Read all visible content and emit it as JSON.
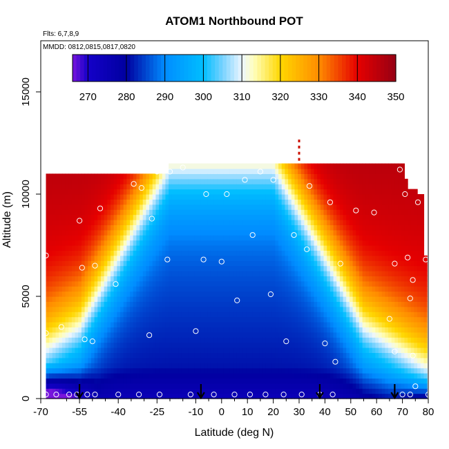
{
  "chart_data": {
    "type": "heatmap",
    "title": "ATOM1 Northbound POT",
    "subtitle_flights": "Flts: 6,7,8,9",
    "subtitle_dates": "MMDD: 0812,0815,0817,0820",
    "xlabel": "Latitude (deg N)",
    "ylabel": "Altitude (m)",
    "xlim": [
      -70,
      80
    ],
    "ylim": [
      0,
      17500
    ],
    "x_ticks": [
      "-70",
      "-55",
      "-40",
      "-25",
      "-10",
      "0",
      "10",
      "20",
      "30",
      "40",
      "50",
      "60",
      "70",
      "80"
    ],
    "x_tick_values": [
      -70,
      -55,
      -40,
      -25,
      -10,
      0,
      10,
      20,
      30,
      40,
      50,
      60,
      70,
      80
    ],
    "x_ticks_minor": [
      "-60",
      "-50",
      "-45",
      "-35",
      "-30",
      "-20",
      "-15",
      "-5",
      "5",
      "15",
      "25",
      "35",
      "45",
      "55",
      "65",
      "75"
    ],
    "x_minor_values": [
      -60,
      -50,
      -45,
      -35,
      -30,
      -20,
      -15,
      -5,
      5,
      15,
      25,
      35,
      45,
      55,
      65,
      75
    ],
    "y_ticks": [
      "0",
      "5000",
      "10000",
      "15000"
    ],
    "y_tick_values": [
      0,
      5000,
      10000,
      15000
    ],
    "colorbar": {
      "min": 266,
      "max": 350,
      "ticks": [
        "270",
        "280",
        "290",
        "300",
        "310",
        "320",
        "330",
        "340",
        "350"
      ],
      "tick_values": [
        270,
        280,
        290,
        300,
        310,
        320,
        330,
        340,
        350
      ]
    },
    "grid": false,
    "sample_points": [
      [
        -68,
        7000
      ],
      [
        -68,
        3200
      ],
      [
        -68,
        200
      ],
      [
        -64,
        200
      ],
      [
        -62,
        3500
      ],
      [
        -59,
        200
      ],
      [
        -56,
        200
      ],
      [
        -55,
        8700
      ],
      [
        -54,
        6400
      ],
      [
        -53,
        2900
      ],
      [
        -52,
        200
      ],
      [
        -50,
        2800
      ],
      [
        -49,
        200
      ],
      [
        -49,
        6500
      ],
      [
        -47,
        9300
      ],
      [
        -41,
        5600
      ],
      [
        -40,
        200
      ],
      [
        -34,
        10500
      ],
      [
        -32,
        200
      ],
      [
        -31,
        10300
      ],
      [
        -28,
        3100
      ],
      [
        -27,
        8800
      ],
      [
        -25,
        11100
      ],
      [
        -24,
        200
      ],
      [
        -21,
        6800
      ],
      [
        -20,
        11100
      ],
      [
        -15,
        11300
      ],
      [
        -12,
        200
      ],
      [
        -10,
        3300
      ],
      [
        -7,
        6800
      ],
      [
        -6,
        10000
      ],
      [
        -3,
        200
      ],
      [
        0,
        6700
      ],
      [
        2,
        10000
      ],
      [
        5,
        200
      ],
      [
        6,
        4800
      ],
      [
        9,
        10700
      ],
      [
        11,
        200
      ],
      [
        12,
        8000
      ],
      [
        15,
        11100
      ],
      [
        17,
        200
      ],
      [
        19,
        5100
      ],
      [
        20,
        10700
      ],
      [
        24,
        200
      ],
      [
        25,
        2800
      ],
      [
        28,
        8000
      ],
      [
        31,
        200
      ],
      [
        33,
        7300
      ],
      [
        34,
        10400
      ],
      [
        38,
        200
      ],
      [
        40,
        2700
      ],
      [
        42,
        9600
      ],
      [
        43,
        200
      ],
      [
        44,
        1800
      ],
      [
        46,
        6600
      ],
      [
        52,
        9200
      ],
      [
        59,
        9100
      ],
      [
        65,
        3900
      ],
      [
        67,
        6600
      ],
      [
        67,
        2300
      ],
      [
        69,
        11200
      ],
      [
        70,
        200
      ],
      [
        71,
        10000
      ],
      [
        72,
        6900
      ],
      [
        73,
        200
      ],
      [
        73,
        4900
      ],
      [
        74,
        5800
      ],
      [
        74,
        2100
      ],
      [
        75,
        600
      ],
      [
        76,
        9600
      ],
      [
        79,
        6800
      ],
      [
        80,
        200
      ]
    ],
    "flight_markers_lat": [
      -55,
      -8,
      38,
      67
    ],
    "top_marker": {
      "lat": 30,
      "alt_min": 11700,
      "alt_max": 12600
    }
  }
}
